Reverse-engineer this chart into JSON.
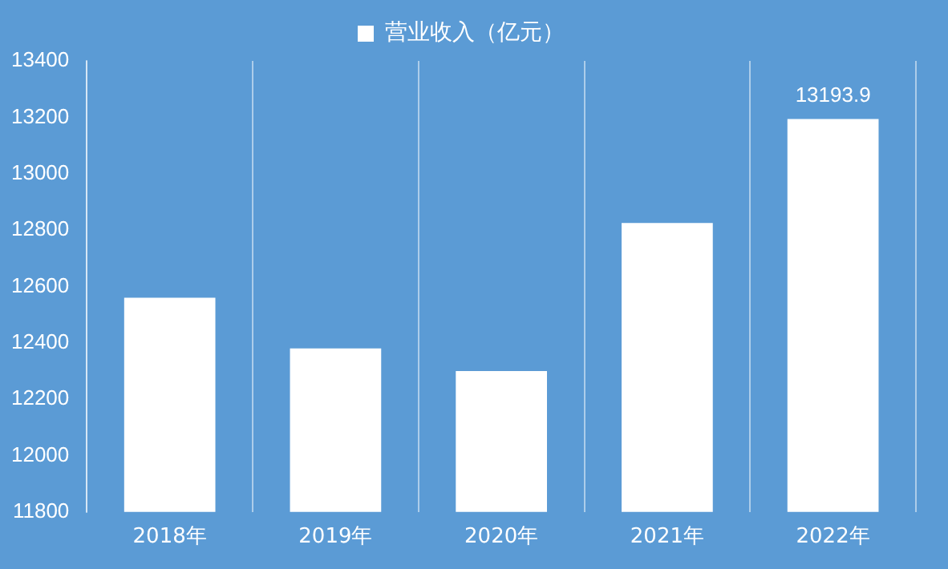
{
  "chart_data": {
    "type": "bar",
    "categories": [
      "2018年",
      "2019年",
      "2020年",
      "2021年",
      "2022年"
    ],
    "series": [
      {
        "name": "营业收入（亿元）",
        "color": "#ffffff",
        "values": [
          12560,
          12380,
          12300,
          12825,
          13193.9
        ],
        "value_labels": [
          null,
          null,
          null,
          null,
          "13193.9"
        ]
      }
    ],
    "ylim": [
      11800,
      13400
    ],
    "yticks": [
      11800,
      12000,
      12200,
      12400,
      12600,
      12800,
      13000,
      13200,
      13400
    ],
    "grid": "x",
    "legend": "top"
  }
}
